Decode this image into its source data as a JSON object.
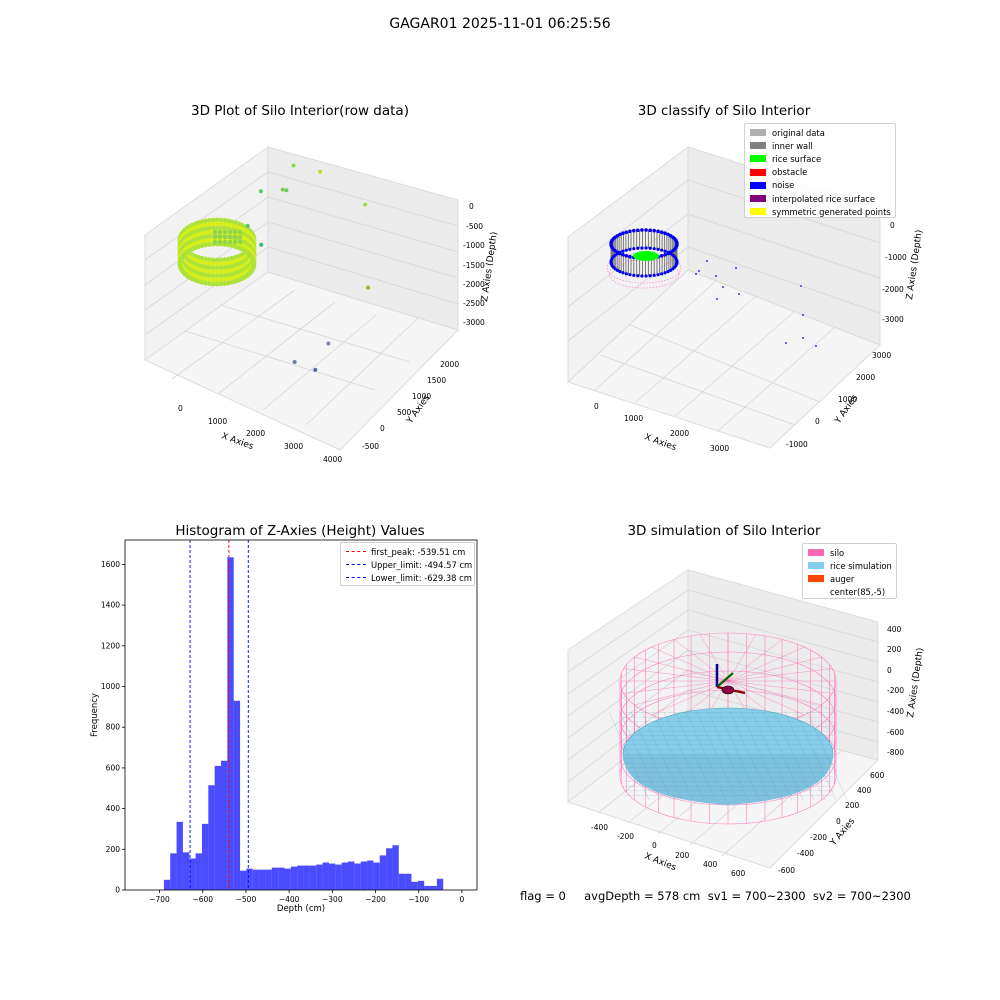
{
  "suptitle": "GAGAR01 2025-11-01 06:25:56",
  "status_line": "flag = 0     avgDepth = 578 cm  sv1 = 700~2300  sv2 = 700~2300",
  "chart_data": [
    {
      "id": "raw",
      "type": "scatter",
      "title": "3D Plot of Silo Interior(row data)",
      "xlabel": "X Axies",
      "ylabel": "Y Axies",
      "zlabel": "Z Axies (Depth)",
      "xticks": [
        "0",
        "1000",
        "2000",
        "3000",
        "4000"
      ],
      "yticks": [
        "-500",
        "0",
        "500",
        "1000",
        "1500",
        "2000"
      ],
      "zticks": [
        "0",
        "-500",
        "-1000",
        "-1500",
        "-2000",
        "-2500",
        "-3000"
      ],
      "grid": true,
      "outliers": [
        {
          "x": 1200,
          "y": 1500,
          "z": -1100
        },
        {
          "x": 1300,
          "y": 1300,
          "z": -1350
        },
        {
          "x": 1500,
          "y": 1700,
          "z": -1250
        },
        {
          "x": 1100,
          "y": 1400,
          "z": -1500
        },
        {
          "x": 900,
          "y": 1200,
          "z": -1450
        },
        {
          "x": 2300,
          "y": 1800,
          "z": -1600
        },
        {
          "x": 1000,
          "y": 900,
          "z": -1800
        },
        {
          "x": 1400,
          "y": 800,
          "z": -1900
        },
        {
          "x": 3100,
          "y": 1200,
          "z": -2300
        },
        {
          "x": 2900,
          "y": 700,
          "z": -3000
        },
        {
          "x": 3000,
          "y": 400,
          "z": -3200
        },
        {
          "x": 2700,
          "y": 300,
          "z": -3100
        }
      ]
    },
    {
      "id": "classify",
      "type": "scatter",
      "title": "3D classify of Silo Interior",
      "xlabel": "X Axies",
      "ylabel": "Y Axies",
      "zlabel": "Z Axies (Depth)",
      "xticks": [
        "0",
        "1000",
        "2000",
        "3000"
      ],
      "yticks": [
        "-1000",
        "0",
        "1000",
        "2000",
        "3000"
      ],
      "zticks": [
        "0",
        "-1000",
        "-2000",
        "-3000"
      ],
      "grid": true,
      "legend_position": "top-right",
      "legend": [
        {
          "label": "original data",
          "color": "#b0b0b0"
        },
        {
          "label": "inner wall",
          "color": "#808080"
        },
        {
          "label": "rice surface",
          "color": "#00ff00"
        },
        {
          "label": "obstacle",
          "color": "#ff0000"
        },
        {
          "label": "noise",
          "color": "#0000ff"
        },
        {
          "label": "interpolated rice surface",
          "color": "#800080"
        },
        {
          "label": "symmetric generated points",
          "color": "#ffff00"
        }
      ]
    },
    {
      "id": "histogram",
      "type": "bar",
      "title": "Histogram of Z-Axies (Height) Values",
      "xlabel": "Depth (cm)",
      "ylabel": "Frequency",
      "xlim": [
        -780,
        35
      ],
      "ylim": [
        0,
        1720
      ],
      "xticks": [
        -700,
        -600,
        -500,
        -400,
        -300,
        -200,
        -100,
        0
      ],
      "yticks": [
        0,
        200,
        400,
        600,
        800,
        1000,
        1200,
        1400,
        1600
      ],
      "bar_color": "#0000ff",
      "legend_position": "top-right",
      "bin_width": 14.7,
      "bins_start": -690,
      "values": [
        50,
        180,
        335,
        185,
        155,
        180,
        325,
        515,
        610,
        635,
        1635,
        930,
        95,
        105,
        100,
        100,
        100,
        110,
        110,
        105,
        115,
        120,
        120,
        120,
        125,
        135,
        130,
        125,
        135,
        140,
        130,
        140,
        145,
        135,
        170,
        205,
        220,
        80,
        80,
        40,
        45,
        20,
        20,
        55
      ],
      "lines": [
        {
          "label": "first_peak: -539.51 cm",
          "x": -539.51,
          "color": "#ff0000"
        },
        {
          "label": "Upper_limit: -494.57 cm",
          "x": -494.57,
          "color": "#0000ff"
        },
        {
          "label": "Lower_limit: -629.38 cm",
          "x": -629.38,
          "color": "#0000ff"
        }
      ]
    },
    {
      "id": "simulation",
      "type": "scatter",
      "title": "3D simulation of Silo Interior",
      "xlabel": "X Axies",
      "ylabel": "Y Axies",
      "zlabel": "Z Axies (Depth)",
      "xticks": [
        "-400",
        "-200",
        "0",
        "200",
        "400",
        "600"
      ],
      "yticks": [
        "-600",
        "-400",
        "-200",
        "0",
        "200",
        "400",
        "600"
      ],
      "zticks": [
        "400",
        "200",
        "0",
        "-200",
        "-400",
        "-600",
        "-800"
      ],
      "grid": true,
      "legend_position": "top-right",
      "legend": [
        {
          "label": "silo",
          "color": "#ff69b4"
        },
        {
          "label": "rice simulation",
          "color": "#87ceeb"
        },
        {
          "label": "auger",
          "color": "#ff4500"
        },
        {
          "label": "center(85,-5)",
          "color": "#ffffff"
        }
      ]
    }
  ]
}
